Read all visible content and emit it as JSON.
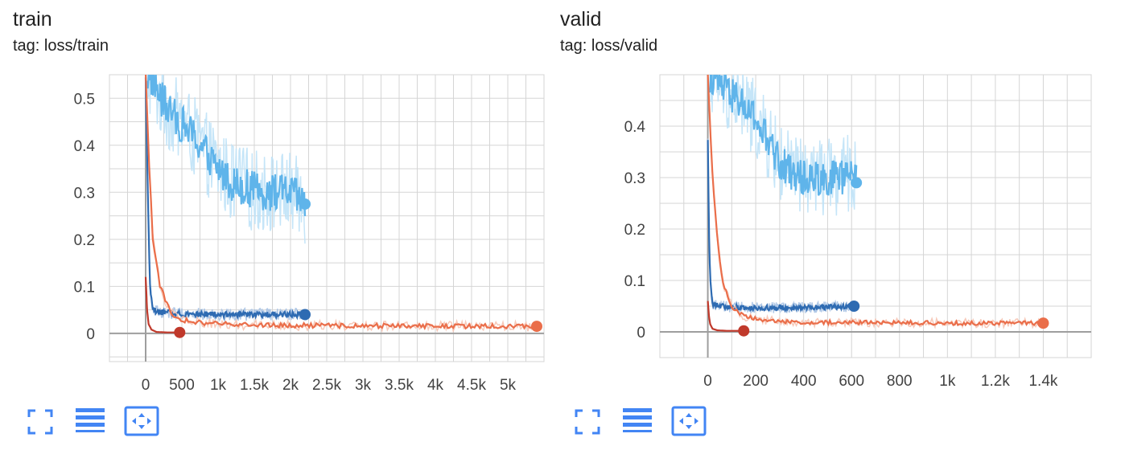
{
  "colors": {
    "light_blue": "#5fb4ea",
    "light_blue_raw": "#bfe2f7",
    "dark_blue": "#2e6bb2",
    "dark_blue_raw": "#a8c3e4",
    "orange": "#ea6e4a",
    "orange_raw": "#f6c3b1",
    "dark_red": "#c0392b",
    "grid": "#d5d5d5",
    "axis": "#9e9e9e",
    "toolbar": "#4285f4"
  },
  "toolbar_icons": [
    "fullscreen-icon",
    "list-icon",
    "fit-domain-icon"
  ],
  "chart_data": [
    {
      "type": "line",
      "title": "train",
      "tag_text": "tag: loss/train",
      "xlim": [
        -500,
        5500
      ],
      "ylim": [
        -0.06,
        0.55
      ],
      "x_ticks": [
        0,
        500,
        1000,
        1500,
        2000,
        2500,
        3000,
        3500,
        4000,
        4500,
        5000
      ],
      "x_tick_labels": [
        "0",
        "500",
        "1k",
        "1.5k",
        "2k",
        "2.5k",
        "3k",
        "3.5k",
        "4k",
        "4.5k",
        "5k"
      ],
      "y_ticks": [
        0,
        0.1,
        0.2,
        0.3,
        0.4,
        0.5
      ],
      "y_tick_labels": [
        "0",
        "0.1",
        "0.2",
        "0.3",
        "0.4",
        "0.5"
      ],
      "grid": true,
      "series": [
        {
          "color_key": "light_blue",
          "x": [
            0,
            100,
            200,
            400,
            600,
            800,
            1000,
            1200,
            1400,
            1600,
            1800,
            2000,
            2200
          ],
          "y": [
            0.55,
            0.54,
            0.5,
            0.46,
            0.43,
            0.39,
            0.35,
            0.32,
            0.31,
            0.3,
            0.3,
            0.3,
            0.275
          ],
          "noise": 0.04
        },
        {
          "color_key": "dark_blue",
          "x": [
            0,
            30,
            60,
            100,
            200,
            500,
            1000,
            1500,
            2000,
            2200
          ],
          "y": [
            0.55,
            0.3,
            0.1,
            0.05,
            0.045,
            0.042,
            0.04,
            0.04,
            0.04,
            0.04
          ],
          "noise": 0.006
        },
        {
          "color_key": "orange",
          "x": [
            0,
            50,
            100,
            200,
            300,
            400,
            600,
            1000,
            2000,
            3000,
            4000,
            5000,
            5400
          ],
          "y": [
            0.55,
            0.35,
            0.2,
            0.1,
            0.06,
            0.035,
            0.025,
            0.02,
            0.017,
            0.016,
            0.016,
            0.015,
            0.015
          ],
          "noise": 0.005
        },
        {
          "color_key": "dark_red",
          "x": [
            0,
            20,
            40,
            80,
            150,
            300,
            470
          ],
          "y": [
            0.12,
            0.05,
            0.02,
            0.008,
            0.003,
            0.002,
            0.002
          ],
          "noise": 0.0
        }
      ]
    },
    {
      "type": "line",
      "title": "valid",
      "tag_text": "tag: loss/valid",
      "xlim": [
        -200,
        1600
      ],
      "ylim": [
        -0.05,
        0.5
      ],
      "x_ticks": [
        0,
        200,
        400,
        600,
        800,
        1000,
        1200,
        1400
      ],
      "x_tick_labels": [
        "0",
        "200",
        "400",
        "600",
        "800",
        "1k",
        "1.2k",
        "1.4k"
      ],
      "y_ticks": [
        0,
        0.1,
        0.2,
        0.3,
        0.4
      ],
      "y_tick_labels": [
        "0",
        "0.1",
        "0.2",
        "0.3",
        "0.4"
      ],
      "grid": true,
      "series": [
        {
          "color_key": "light_blue",
          "x": [
            10,
            50,
            100,
            150,
            200,
            250,
            300,
            350,
            400,
            450,
            500,
            550,
            600,
            620
          ],
          "y": [
            0.5,
            0.48,
            0.46,
            0.44,
            0.41,
            0.37,
            0.33,
            0.31,
            0.3,
            0.3,
            0.3,
            0.3,
            0.31,
            0.29
          ],
          "noise": 0.035
        },
        {
          "color_key": "dark_blue",
          "x": [
            0,
            5,
            10,
            20,
            50,
            100,
            200,
            300,
            400,
            500,
            600,
            610
          ],
          "y": [
            0.37,
            0.2,
            0.1,
            0.055,
            0.05,
            0.048,
            0.047,
            0.047,
            0.047,
            0.048,
            0.05,
            0.05
          ],
          "noise": 0.005
        },
        {
          "color_key": "orange",
          "x": [
            0,
            10,
            20,
            40,
            60,
            100,
            150,
            250,
            400,
            600,
            800,
            1000,
            1200,
            1400
          ],
          "y": [
            0.5,
            0.4,
            0.3,
            0.18,
            0.1,
            0.05,
            0.03,
            0.022,
            0.019,
            0.018,
            0.018,
            0.017,
            0.017,
            0.017
          ],
          "noise": 0.004
        },
        {
          "color_key": "dark_red",
          "x": [
            0,
            5,
            10,
            20,
            40,
            80,
            150
          ],
          "y": [
            0.06,
            0.03,
            0.015,
            0.006,
            0.003,
            0.002,
            0.002
          ],
          "noise": 0.0
        }
      ]
    }
  ]
}
